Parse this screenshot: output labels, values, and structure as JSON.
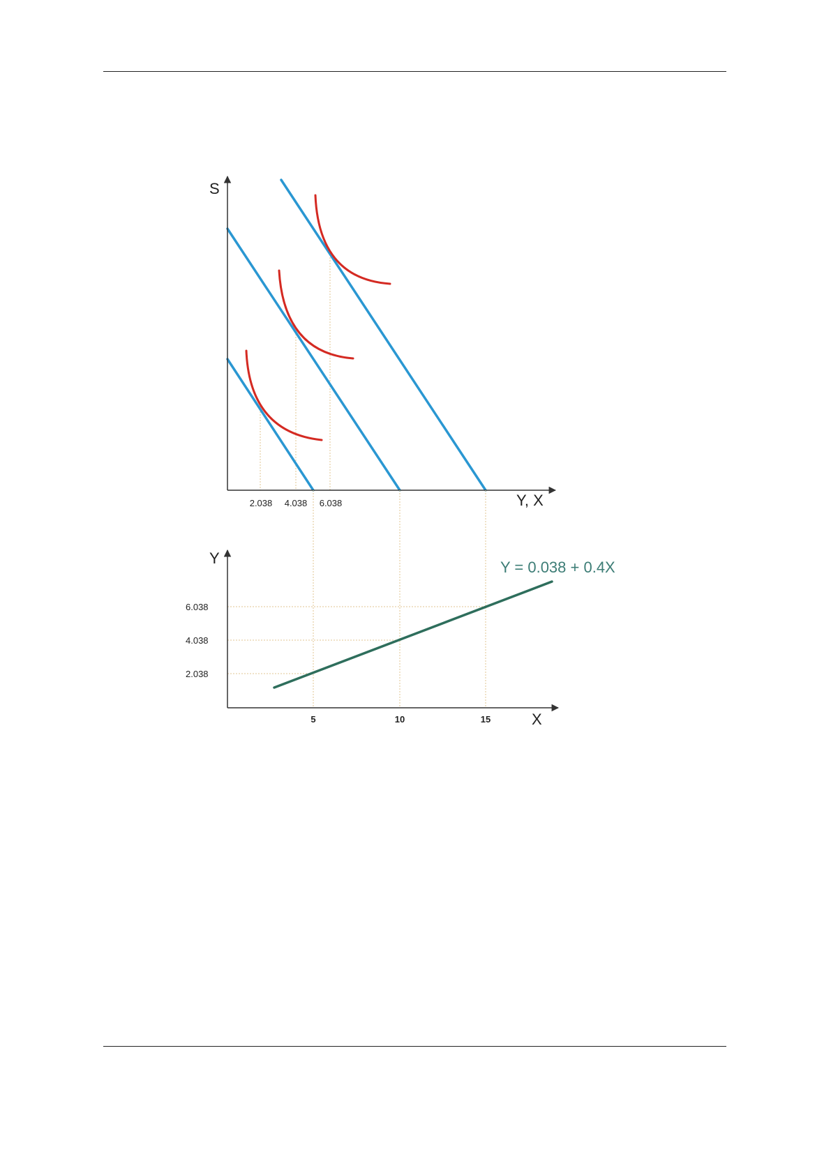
{
  "colors": {
    "budget_line": "#2a97d2",
    "indifference_curve": "#d42a22",
    "linear_function": "#2e6e5c",
    "equation_text": "#3d7d76",
    "guide_line": "#e2c690",
    "axis": "#333333"
  },
  "top_panel": {
    "y_axis_title": "S",
    "x_axis_title": "Y, X",
    "x_tick_labels": [
      "2.038",
      "4.038",
      "6.038"
    ]
  },
  "bottom_panel": {
    "y_axis_title": "Y",
    "x_axis_title": "X",
    "y_tick_labels": [
      "6.038",
      "4.038",
      "2.038"
    ],
    "x_tick_labels": [
      "5",
      "10",
      "15"
    ],
    "equation": "Y = 0.038 + 0.4X"
  },
  "relation": {
    "intercept": 0.038,
    "slope": 0.4,
    "x_values": [
      5,
      10,
      15
    ],
    "y_values": [
      2.038,
      4.038,
      6.038
    ]
  }
}
